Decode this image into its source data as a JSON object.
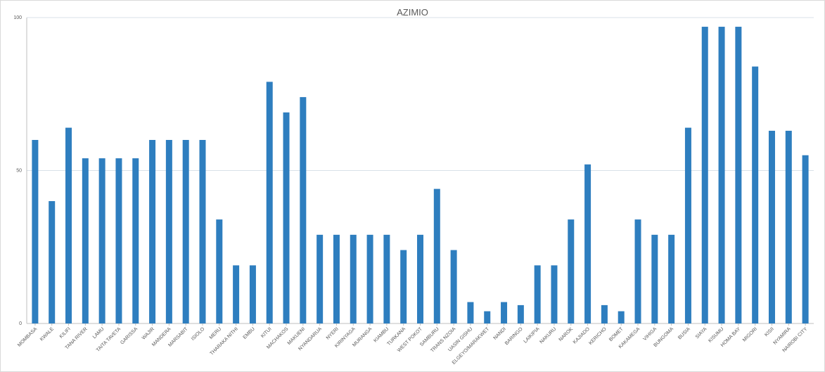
{
  "chart_data": {
    "type": "bar",
    "title": "AZIMIO",
    "xlabel": "",
    "ylabel": "",
    "ylim": [
      0,
      100
    ],
    "yticks": [
      0,
      50,
      100
    ],
    "grid": true,
    "legend": "none",
    "bar_color": "#2e7ebf",
    "grid_color": "#d9e1e8",
    "categories": [
      "MOMBASA",
      "KWALE",
      "KILIFI",
      "TANA RIVER",
      "LAMU",
      "TAITA TAVETA",
      "GARISSA",
      "WAJIR",
      "MANDERA",
      "MARSABIT",
      "ISIOLO",
      "MERU",
      "THARAKA NITHI",
      "EMBU",
      "KITUI",
      "MACHAKOS",
      "MAKUENI",
      "NYANDARUA",
      "NYERI",
      "KIRINYAGA",
      "MURANGA",
      "KIAMBU",
      "TURKANA",
      "WEST POKOT",
      "SAMBURU",
      "TRANS NZOIA",
      "UASIN GISHU",
      "ELGEYO/MARAKWET",
      "NANDI",
      "BARINGO",
      "LAIKIPIA",
      "NAKURU",
      "NAROK",
      "KAJIADO",
      "KERICHO",
      "BOMET",
      "KAKAMEGA",
      "VIHIGA",
      "BUNGOMA",
      "BUSIA",
      "SIAYA",
      "KISUMU",
      "HOMA BAY",
      "MIGORI",
      "KISII",
      "NYAMIRA",
      "NAIROBI CITY"
    ],
    "values": [
      60,
      40,
      64,
      54,
      54,
      54,
      54,
      60,
      60,
      60,
      60,
      34,
      19,
      19,
      79,
      69,
      74,
      29,
      29,
      29,
      29,
      29,
      24,
      29,
      44,
      24,
      7,
      4,
      7,
      6,
      19,
      19,
      34,
      52,
      6,
      4,
      34,
      29,
      29,
      64,
      97,
      97,
      97,
      84,
      63,
      63,
      55
    ]
  }
}
